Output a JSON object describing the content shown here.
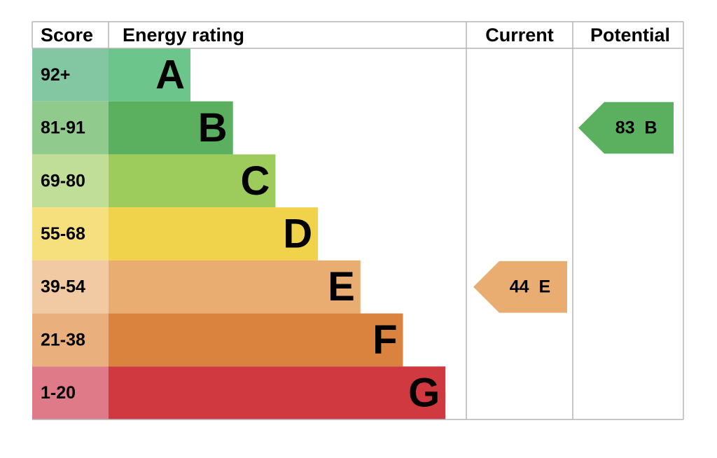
{
  "header": {
    "score": "Score",
    "rating": "Energy rating",
    "current": "Current",
    "potential": "Potential"
  },
  "rows": [
    {
      "score": "92+",
      "letter": "A",
      "color": "#6cc58a",
      "score_color": "#82c6a2"
    },
    {
      "score": "81-91",
      "letter": "B",
      "color": "#5bb060",
      "score_color": "#90ca8d"
    },
    {
      "score": "69-80",
      "letter": "C",
      "color": "#9dcb5c",
      "score_color": "#c0de97"
    },
    {
      "score": "55-68",
      "letter": "D",
      "color": "#f1d24b",
      "score_color": "#f6e07d"
    },
    {
      "score": "39-54",
      "letter": "E",
      "color": "#e9ad72",
      "score_color": "#f1c9a2"
    },
    {
      "score": "21-38",
      "letter": "F",
      "color": "#d9833e",
      "score_color": "#e9b07d"
    },
    {
      "score": "1-20",
      "letter": "G",
      "color": "#d0393f",
      "score_color": "#df7b89"
    }
  ],
  "current": {
    "value": 44,
    "letter": "E"
  },
  "potential": {
    "value": 83,
    "letter": "B"
  }
}
